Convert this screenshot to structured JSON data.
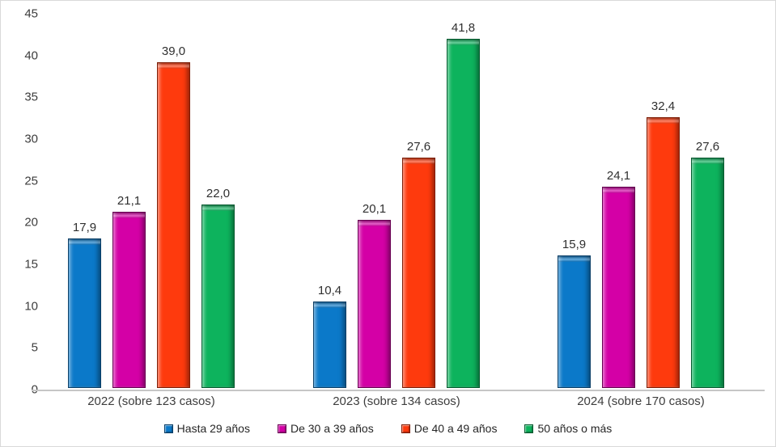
{
  "chart_data": {
    "type": "bar",
    "categories": [
      "2022 (sobre 123 casos)",
      "2023 (sobre 134 casos)",
      "2024 (sobre 170 casos)"
    ],
    "series": [
      {
        "key": "hasta-29-anos",
        "name": "Hasta 29 años",
        "color": "#0b79c9",
        "color_dark": "#0a3e66",
        "values": [
          17.9,
          10.4,
          15.9
        ],
        "labels": [
          "17,9",
          "10,4",
          "15,9"
        ]
      },
      {
        "key": "de-30-a-39-anos",
        "name": "De 30 a 39 años",
        "color": "#d400a6",
        "color_dark": "#670051",
        "values": [
          21.1,
          20.1,
          24.1
        ],
        "labels": [
          "21,1",
          "20,1",
          "24,1"
        ]
      },
      {
        "key": "de-40-a-49-anos",
        "name": "De 40 a 49 años",
        "color": "#fe3a0d",
        "color_dark": "#7e1d05",
        "values": [
          39.0,
          27.6,
          32.4
        ],
        "labels": [
          "39,0",
          "27,6",
          "32,4"
        ]
      },
      {
        "key": "50-anos-o-mas",
        "name": "50 años o más",
        "color": "#0db35d",
        "color_dark": "#065a2f",
        "values": [
          22.0,
          41.8,
          27.6
        ],
        "labels": [
          "22,0",
          "41,8",
          "27,6"
        ]
      }
    ],
    "ylim": [
      0,
      45
    ],
    "yticks": [
      0,
      5,
      10,
      15,
      20,
      25,
      30,
      35,
      40,
      45
    ],
    "ytick_labels": [
      "0",
      "5",
      "10",
      "15",
      "20",
      "25",
      "30",
      "35",
      "40",
      "45"
    ],
    "xlabel": "",
    "ylabel": "",
    "title": "",
    "grid": false,
    "legend_position": "bottom",
    "axis_line_color": "#c6c6c6",
    "text_color": "#3d3d3d"
  }
}
